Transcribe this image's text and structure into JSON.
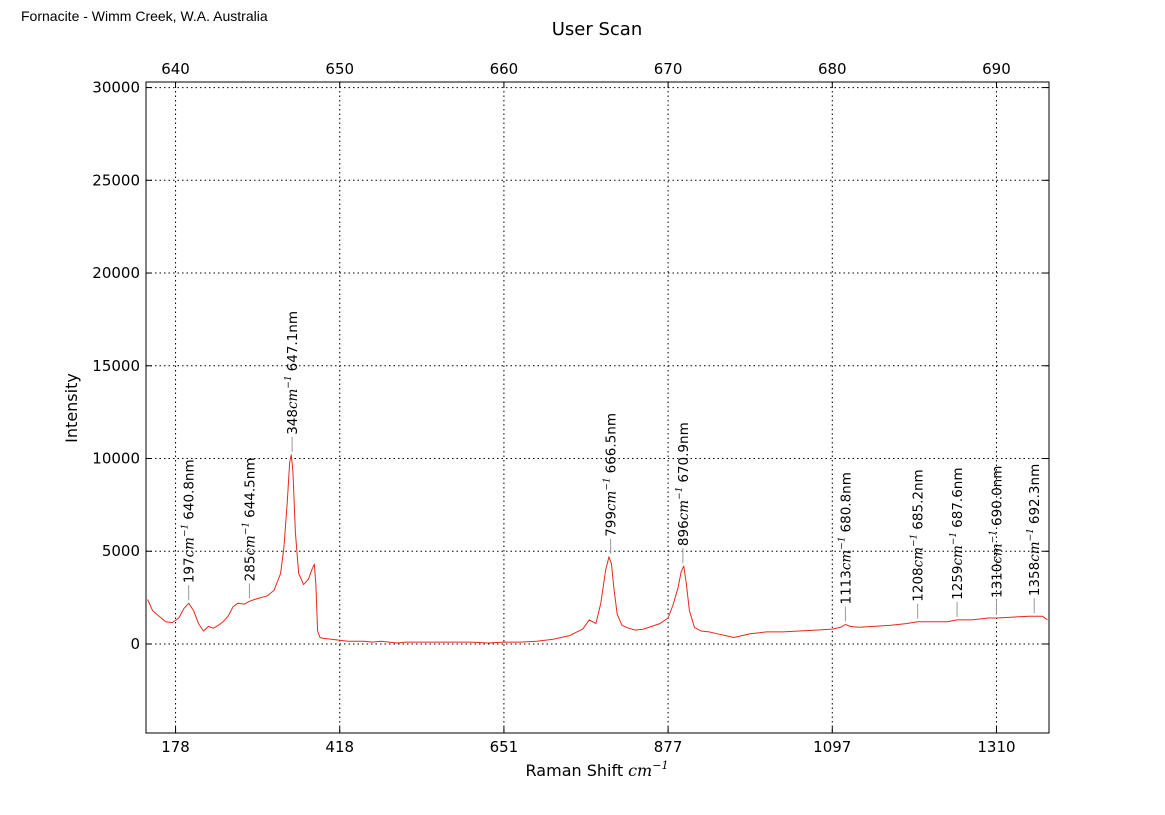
{
  "header": {
    "sample_label": "Fornacite - Wimm Creek, W.A. Australia"
  },
  "chart_data": {
    "type": "line",
    "title": "User Scan",
    "xlabel": "Raman Shift",
    "xlabel_unit": "cm",
    "xlabel_unit_exp": "−1",
    "ylabel": "Intensity",
    "ylim": [
      -4800,
      30300
    ],
    "y_ticks": [
      0,
      5000,
      10000,
      15000,
      20000,
      25000,
      30000
    ],
    "y_tick_labels": [
      "0",
      "5000",
      "10000",
      "15000",
      "20000",
      "25000",
      "30000"
    ],
    "top_axis": {
      "unit": "nm",
      "range": [
        638.2,
        693.2
      ],
      "ticks": [
        640,
        650,
        660,
        670,
        680,
        690
      ],
      "tick_labels": [
        "640",
        "650",
        "660",
        "670",
        "680",
        "690"
      ]
    },
    "bottom_axis_ticks": [
      {
        "nm": 640,
        "label": "178"
      },
      {
        "nm": 650,
        "label": "418"
      },
      {
        "nm": 660,
        "label": "651"
      },
      {
        "nm": 670,
        "label": "877"
      },
      {
        "nm": 680,
        "label": "1097"
      },
      {
        "nm": 690,
        "label": "1310"
      }
    ],
    "grid": true,
    "line_color": "#e8281c",
    "series": [
      {
        "x": [
          638.3,
          638.6,
          639.0,
          639.4,
          639.8,
          640.2,
          640.5,
          640.8,
          641.1,
          641.4,
          641.7,
          642.0,
          642.3,
          642.6,
          642.9,
          643.2,
          643.5,
          643.8,
          644.2,
          644.5,
          644.8,
          645.2,
          645.6,
          646.0,
          646.4,
          646.6,
          646.8,
          646.95,
          647.05,
          647.15,
          647.3,
          647.5,
          647.8,
          648.1,
          648.3,
          648.45,
          648.55,
          648.65,
          648.8,
          649.0,
          649.5,
          650.0,
          650.5,
          651.0,
          651.5,
          652.0,
          652.5,
          653.0,
          653.5,
          654.0,
          655.0,
          656.0,
          657.0,
          658.0,
          659.0,
          660.0,
          661.0,
          662.0,
          663.0,
          664.0,
          664.8,
          665.2,
          665.6,
          665.9,
          666.2,
          666.4,
          666.55,
          666.7,
          666.9,
          667.2,
          667.6,
          668.0,
          668.5,
          669.0,
          669.5,
          670.0,
          670.3,
          670.6,
          670.8,
          670.95,
          671.1,
          671.3,
          671.6,
          672.0,
          672.5,
          673.0,
          673.5,
          674.0,
          675.0,
          676.0,
          677.0,
          678.0,
          679.0,
          680.0,
          680.5,
          680.8,
          681.1,
          681.6,
          682.5,
          683.5,
          684.5,
          685.2,
          686.0,
          687.0,
          687.6,
          688.5,
          689.5,
          690.0,
          691.0,
          692.0,
          692.3,
          692.8,
          693.1
        ],
        "y": [
          2400,
          1800,
          1500,
          1200,
          1150,
          1400,
          1900,
          2200,
          1800,
          1100,
          700,
          950,
          850,
          1000,
          1200,
          1500,
          2000,
          2200,
          2150,
          2300,
          2400,
          2500,
          2600,
          2900,
          3800,
          5200,
          7600,
          9800,
          10200,
          9300,
          6000,
          3800,
          3200,
          3500,
          4000,
          4300,
          3200,
          700,
          350,
          300,
          250,
          200,
          150,
          150,
          150,
          100,
          150,
          100,
          50,
          100,
          100,
          100,
          100,
          100,
          50,
          100,
          100,
          150,
          250,
          450,
          800,
          1300,
          1100,
          2200,
          4000,
          4700,
          4300,
          3000,
          1600,
          1000,
          850,
          750,
          800,
          950,
          1100,
          1400,
          2100,
          3000,
          3900,
          4200,
          3300,
          1800,
          900,
          700,
          650,
          550,
          450,
          350,
          550,
          650,
          650,
          700,
          750,
          800,
          900,
          1050,
          950,
          900,
          950,
          1000,
          1100,
          1200,
          1200,
          1200,
          1300,
          1300,
          1400,
          1400,
          1450,
          1500,
          1500,
          1500,
          1300
        ]
      }
    ],
    "peak_annotations": [
      {
        "x": 640.8,
        "y": 2200,
        "shift": "197",
        "wavelength": "640.8nm"
      },
      {
        "x": 644.5,
        "y": 2300,
        "shift": "285",
        "wavelength": "644.5nm"
      },
      {
        "x": 647.1,
        "y": 10200,
        "shift": "348",
        "wavelength": "647.1nm"
      },
      {
        "x": 666.5,
        "y": 4700,
        "shift": "799",
        "wavelength": "666.5nm"
      },
      {
        "x": 670.9,
        "y": 4200,
        "shift": "896",
        "wavelength": "670.9nm"
      },
      {
        "x": 680.8,
        "y": 1050,
        "shift": "1113",
        "wavelength": "680.8nm"
      },
      {
        "x": 685.2,
        "y": 1200,
        "shift": "1208",
        "wavelength": "685.2nm"
      },
      {
        "x": 687.6,
        "y": 1300,
        "shift": "1259",
        "wavelength": "687.6nm"
      },
      {
        "x": 690.0,
        "y": 1400,
        "shift": "1310",
        "wavelength": "690.0nm"
      },
      {
        "x": 692.3,
        "y": 1500,
        "shift": "1358",
        "wavelength": "692.3nm"
      }
    ],
    "peak_unit": "cm",
    "peak_unit_exp": "−1"
  }
}
